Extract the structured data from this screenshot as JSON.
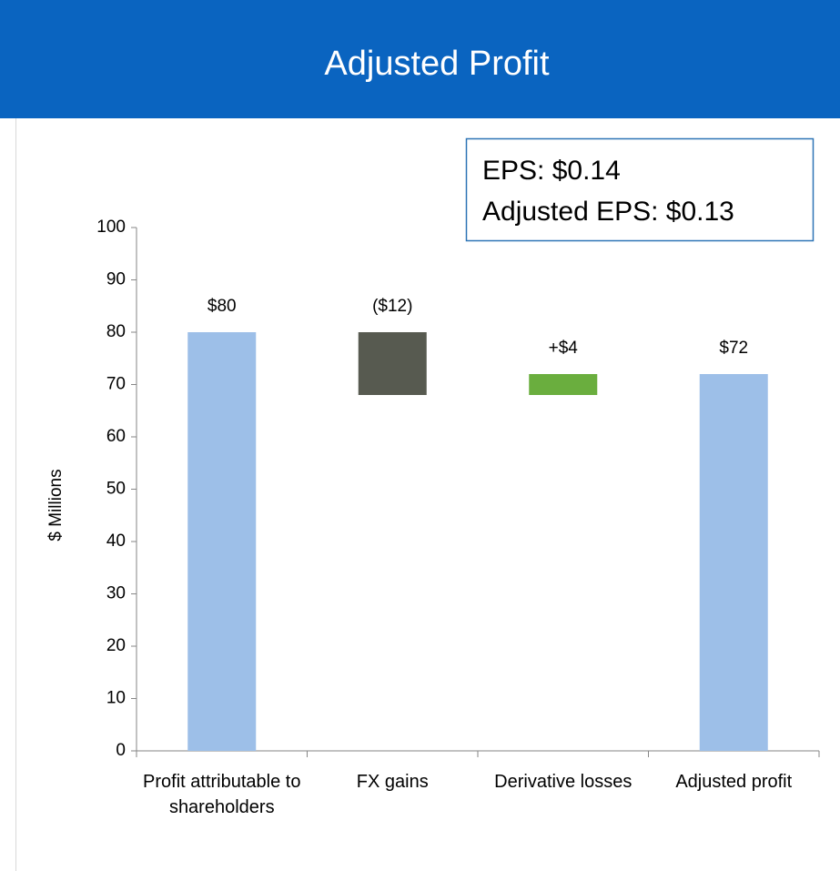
{
  "chart_data": {
    "type": "waterfall",
    "title": "Adjusted Profit",
    "annotation": [
      "EPS: $0.14",
      "Adjusted EPS: $0.13"
    ],
    "ylabel": "$ Millions",
    "categories": [
      "Profit attributable to shareholders",
      "FX gains",
      "Derivative losses",
      "Adjusted profit"
    ],
    "values": [
      80,
      -12,
      4,
      72
    ],
    "value_labels": [
      "$80",
      "($12)",
      "+$4",
      "$72"
    ],
    "measures": [
      "total",
      "relative",
      "relative",
      "total"
    ],
    "colors": [
      "#9dbfe8",
      "#575a50",
      "#6aae3e",
      "#9dbfe8"
    ],
    "ylim": [
      0,
      100
    ],
    "yticks": [
      0,
      10,
      20,
      30,
      40,
      50,
      60,
      70,
      80,
      90,
      100
    ]
  }
}
